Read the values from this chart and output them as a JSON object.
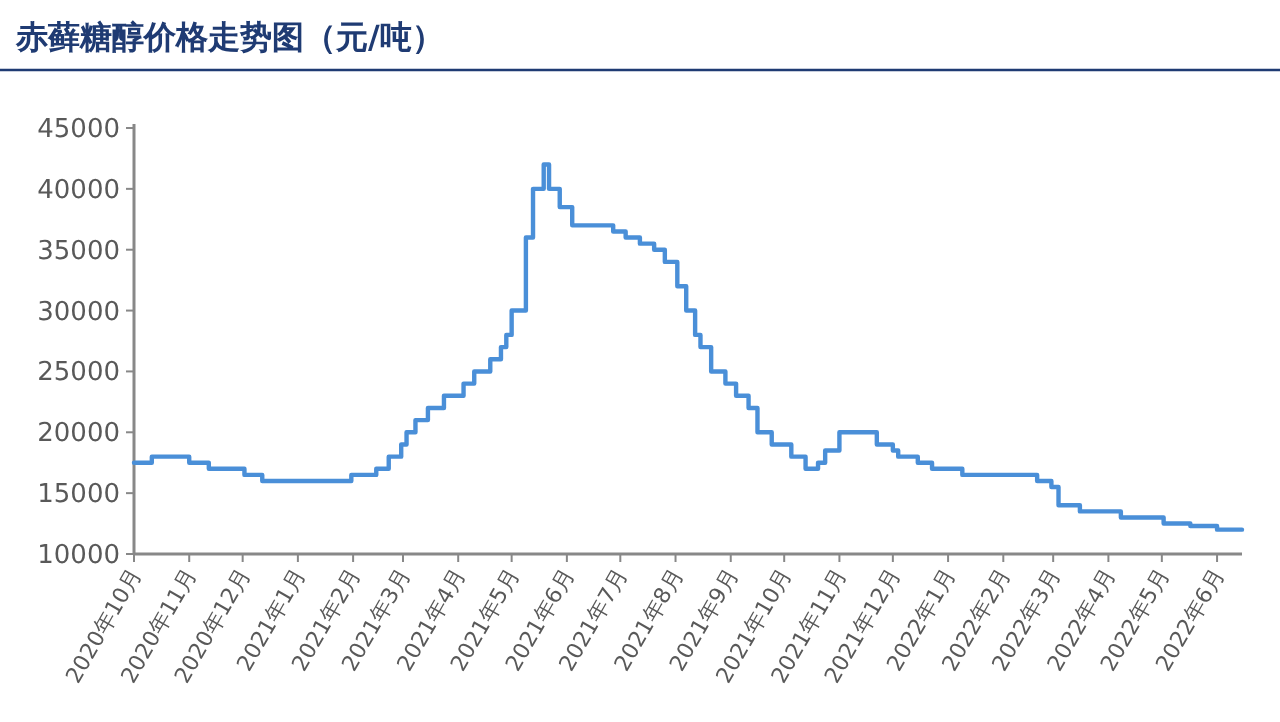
{
  "chart_data": {
    "type": "step",
    "title": "赤藓糖醇价格走势图（元/吨）",
    "color": "#4a8fd8",
    "x": [
      "2020-10-01",
      "2020-10-11",
      "2020-11-01",
      "2020-11-12",
      "2020-12-02",
      "2020-12-12",
      "2021-01-31",
      "2021-02-14",
      "2021-02-21",
      "2021-02-28",
      "2021-03-03",
      "2021-03-08",
      "2021-03-15",
      "2021-03-24",
      "2021-04-04",
      "2021-04-10",
      "2021-04-19",
      "2021-04-25",
      "2021-04-28",
      "2021-05-01",
      "2021-05-09",
      "2021-05-13",
      "2021-05-19",
      "2021-05-22",
      "2021-05-28",
      "2021-06-04",
      "2021-06-27",
      "2021-07-04",
      "2021-07-12",
      "2021-07-20",
      "2021-07-26",
      "2021-08-02",
      "2021-08-07",
      "2021-08-12",
      "2021-08-15",
      "2021-08-21",
      "2021-08-29",
      "2021-09-04",
      "2021-09-11",
      "2021-09-16",
      "2021-09-24",
      "2021-10-05",
      "2021-10-13",
      "2021-10-20",
      "2021-10-24",
      "2021-11-01",
      "2021-11-22",
      "2021-12-01",
      "2021-12-04",
      "2021-12-15",
      "2021-12-23",
      "2022-01-09",
      "2022-02-20",
      "2022-02-28",
      "2022-03-04",
      "2022-03-16",
      "2022-04-08",
      "2022-05-02",
      "2022-05-17",
      "2022-06-01",
      "2022-06-15"
    ],
    "values": [
      17500,
      18000,
      17500,
      17000,
      16500,
      16000,
      16500,
      17000,
      18000,
      19000,
      20000,
      21000,
      22000,
      23000,
      24000,
      25000,
      26000,
      27000,
      28000,
      30000,
      36000,
      40000,
      42000,
      40000,
      38500,
      37000,
      36500,
      36000,
      35500,
      35000,
      34000,
      32000,
      30000,
      28000,
      27000,
      25000,
      24000,
      23000,
      22000,
      20000,
      19000,
      18000,
      17000,
      17500,
      18500,
      20000,
      19000,
      18500,
      18000,
      17500,
      17000,
      16500,
      16000,
      15500,
      14000,
      13500,
      13000,
      12500,
      12300,
      12000,
      12000
    ],
    "xlim": [
      "2020-10-01",
      "2022-06-15"
    ],
    "xticks": [
      {
        "value": "2020-10-01",
        "label": "2020年10月"
      },
      {
        "value": "2020-11-01",
        "label": "2020年11月"
      },
      {
        "value": "2020-12-01",
        "label": "2020年12月"
      },
      {
        "value": "2021-01-01",
        "label": "2021年1月"
      },
      {
        "value": "2021-02-01",
        "label": "2021年2月"
      },
      {
        "value": "2021-03-01",
        "label": "2021年3月"
      },
      {
        "value": "2021-04-01",
        "label": "2021年4月"
      },
      {
        "value": "2021-05-01",
        "label": "2021年5月"
      },
      {
        "value": "2021-06-01",
        "label": "2021年6月"
      },
      {
        "value": "2021-07-01",
        "label": "2021年7月"
      },
      {
        "value": "2021-08-01",
        "label": "2021年8月"
      },
      {
        "value": "2021-09-01",
        "label": "2021年9月"
      },
      {
        "value": "2021-10-01",
        "label": "2021年10月"
      },
      {
        "value": "2021-11-01",
        "label": "2021年11月"
      },
      {
        "value": "2021-12-01",
        "label": "2021年12月"
      },
      {
        "value": "2022-01-01",
        "label": "2022年1月"
      },
      {
        "value": "2022-02-01",
        "label": "2022年2月"
      },
      {
        "value": "2022-03-01",
        "label": "2022年3月"
      },
      {
        "value": "2022-04-01",
        "label": "2022年4月"
      },
      {
        "value": "2022-05-01",
        "label": "2022年5月"
      },
      {
        "value": "2022-06-01",
        "label": "2022年6月"
      }
    ],
    "ylim": [
      10000,
      45000
    ],
    "yticks": [
      10000,
      15000,
      20000,
      25000,
      30000,
      35000,
      40000,
      45000
    ]
  }
}
